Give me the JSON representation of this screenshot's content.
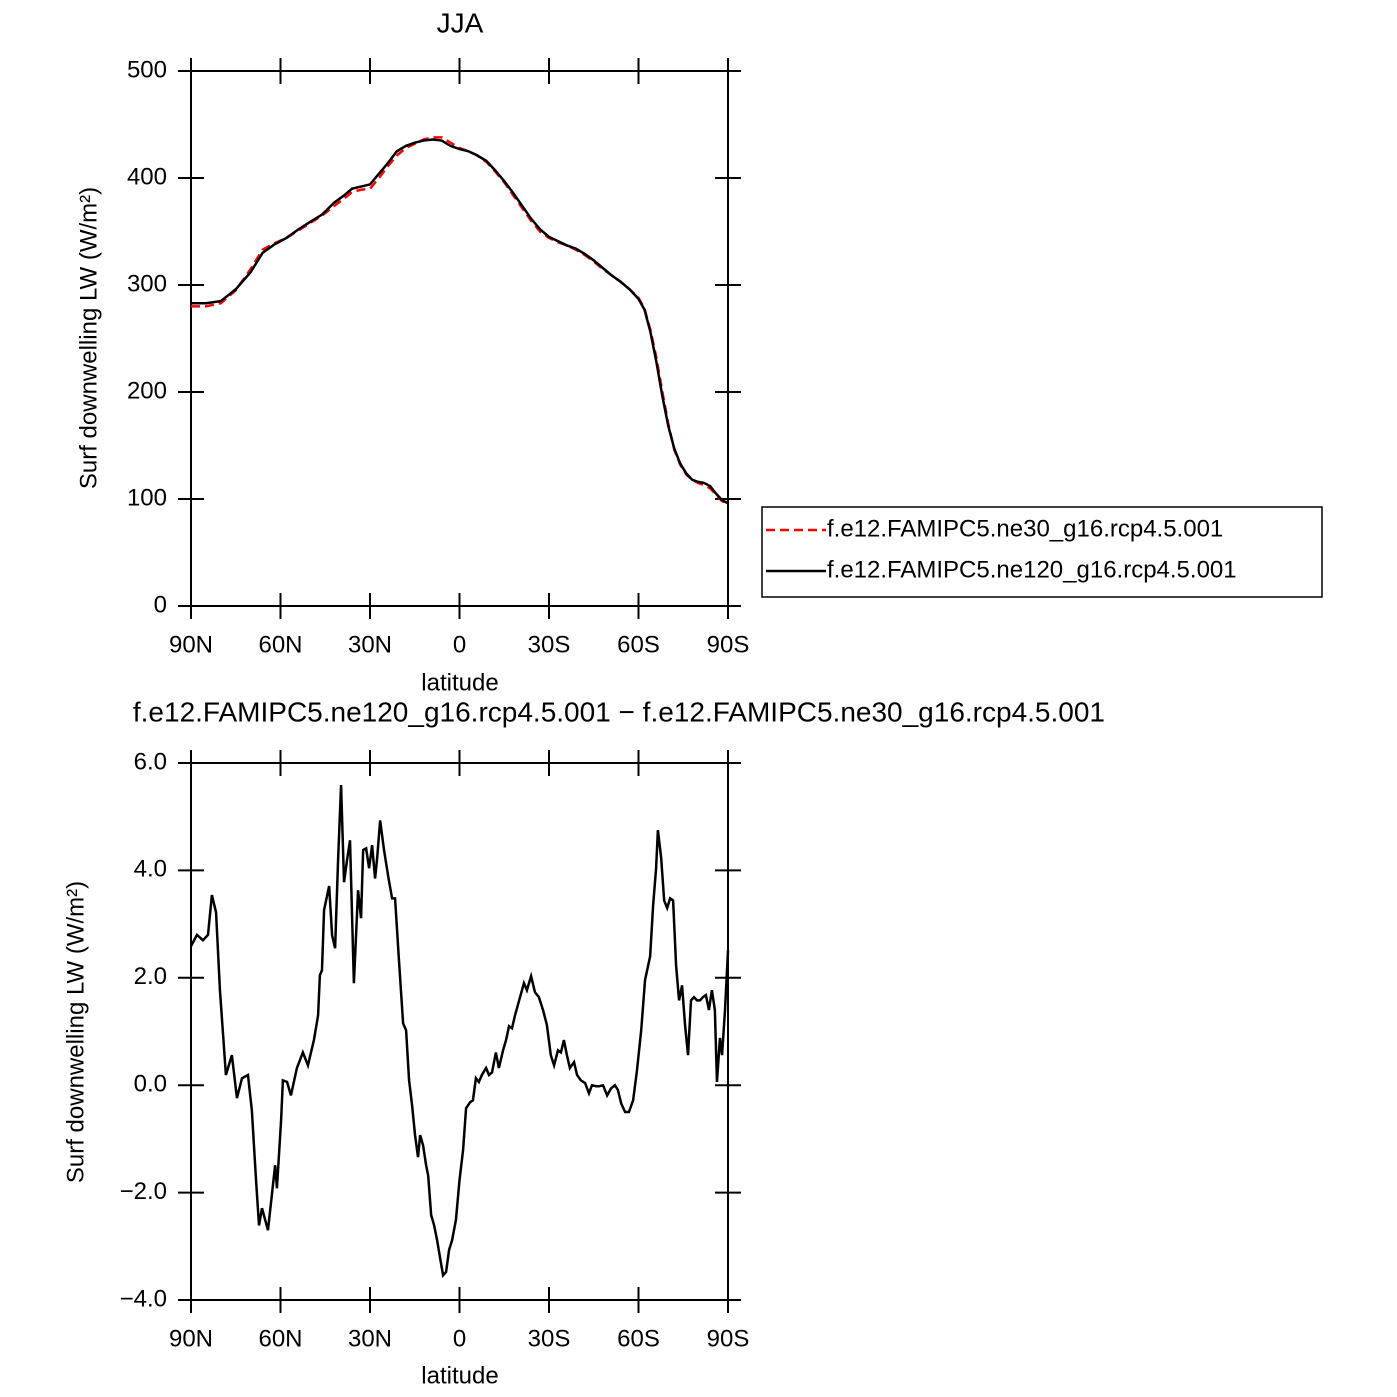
{
  "chart_data": [
    {
      "type": "line",
      "title": "JJA",
      "xlabel": "latitude",
      "ylabel": "Surf downwelling LW (W/m²)",
      "xlim": [
        90,
        -90
      ],
      "xticks": [
        {
          "value": 90,
          "label": "90N"
        },
        {
          "value": 60,
          "label": "60N"
        },
        {
          "value": 30,
          "label": "30N"
        },
        0,
        {
          "value": -30,
          "label": "30S"
        },
        {
          "value": -60,
          "label": "60S"
        },
        {
          "value": -90,
          "label": "90S"
        }
      ],
      "ylim": [
        0,
        500
      ],
      "yticks": [
        0,
        100,
        200,
        300,
        400,
        500
      ],
      "x": [
        90,
        85,
        80,
        75,
        70,
        66,
        62,
        58,
        54,
        50,
        46,
        42,
        39,
        36,
        33,
        30,
        27,
        24,
        21,
        18,
        15,
        12,
        9,
        6,
        3,
        0,
        -3,
        -6,
        -9,
        -12,
        -15,
        -18,
        -21,
        -24,
        -27,
        -30,
        -33,
        -36,
        -39,
        -42,
        -45,
        -48,
        -51,
        -54,
        -57,
        -60,
        -62,
        -64,
        -66,
        -68,
        -70,
        -72,
        -74,
        -76,
        -78,
        -80,
        -82,
        -84,
        -86,
        -88,
        -90
      ],
      "series": [
        {
          "name": "f.e12.FAMIPC5.ne30_g16.rcp4.5.001",
          "color": "#ff0000",
          "dashed": true,
          "values": [
            280,
            280,
            283,
            295,
            315,
            333,
            339,
            344,
            351,
            358,
            365,
            374,
            380,
            387,
            389,
            390,
            400,
            411,
            421,
            428,
            432,
            436,
            438,
            438,
            433,
            428,
            425,
            421,
            415,
            406,
            396,
            384,
            372,
            360,
            350,
            344,
            340,
            337,
            333,
            328,
            322,
            315,
            309,
            303,
            296,
            288,
            278,
            258,
            232,
            200,
            170,
            146,
            132,
            123,
            118,
            115,
            113,
            110,
            104,
            98,
            96
          ]
        },
        {
          "name": "f.e12.FAMIPC5.ne120_g16.rcp4.5.001",
          "color": "#000000",
          "dashed": false,
          "values": [
            283,
            283,
            285,
            296,
            312,
            330,
            338,
            344,
            352,
            359,
            366,
            377,
            383,
            390,
            392,
            394,
            404,
            414,
            425,
            430,
            433,
            435,
            436,
            435,
            430,
            427,
            425,
            421,
            416,
            407,
            397,
            386,
            374,
            362,
            352,
            345,
            341,
            337,
            334,
            329,
            323,
            316,
            309,
            303,
            296,
            287,
            277,
            256,
            228,
            196,
            168,
            147,
            133,
            124,
            118,
            116,
            115,
            112,
            105,
            99,
            96
          ]
        }
      ]
    },
    {
      "type": "line",
      "title": "f.e12.FAMIPC5.ne120_g16.rcp4.5.001 − f.e12.FAMIPC5.ne30_g16.rcp4.5.001",
      "xlabel": "latitude",
      "ylabel": "Surf downwelling LW (W/m²)",
      "xlim": [
        90,
        -90
      ],
      "xticks": [
        {
          "value": 90,
          "label": "90N"
        },
        {
          "value": 60,
          "label": "60N"
        },
        {
          "value": 30,
          "label": "30N"
        },
        0,
        {
          "value": -30,
          "label": "30S"
        },
        {
          "value": -60,
          "label": "60S"
        },
        {
          "value": -90,
          "label": "90S"
        }
      ],
      "ylim": [
        -4,
        6
      ],
      "yticks": [
        {
          "value": -4,
          "label": "−4.0"
        },
        {
          "value": -2,
          "label": "−2.0"
        },
        {
          "value": 0,
          "label": "0.0"
        },
        {
          "value": 2,
          "label": "2.0"
        },
        {
          "value": 4,
          "label": "4.0"
        },
        {
          "value": 6,
          "label": "6.0"
        }
      ],
      "color": "#000000",
      "x": [
        90,
        88,
        86,
        84.3,
        83,
        81.6,
        80.3,
        78.3,
        76.3,
        74.6,
        72.9,
        70.9,
        69.6,
        68.2,
        67.2,
        66.2,
        64.2,
        61.8,
        61.2,
        59.8,
        59.2,
        57.8,
        56.5,
        54.5,
        52.5,
        50.8,
        48.8,
        47.4,
        46.8,
        46.1,
        45.4,
        43.7,
        42.7,
        41.7,
        40.7,
        39.7,
        38.7,
        37.7,
        36.7,
        35.4,
        34,
        33,
        32.3,
        31.3,
        30.3,
        29.3,
        28.3,
        27.6,
        26.6,
        25.3,
        23.9,
        22.6,
        21.6,
        20.3,
        18.9,
        17.9,
        16.9,
        15.9,
        14.9,
        13.9,
        13.2,
        12.2,
        11.2,
        10.5,
        9.5,
        8.5,
        7.5,
        6.5,
        5.5,
        4.5,
        3.5,
        2.5,
        1.2,
        0,
        -1.2,
        -2.2,
        -3.5,
        -4.5,
        -5.5,
        -6.5,
        -7.5,
        -8.9,
        -9.9,
        -10.9,
        -12.2,
        -13.2,
        -14.6,
        -15.6,
        -16.6,
        -17.6,
        -18.6,
        -20,
        -21.6,
        -22.6,
        -24,
        -25.3,
        -26.6,
        -28,
        -29.3,
        -30.6,
        -31.7,
        -33,
        -34,
        -35,
        -36,
        -37,
        -38.4,
        -39.4,
        -40.7,
        -42.1,
        -43.4,
        -44.4,
        -45.8,
        -46.8,
        -48.1,
        -49.5,
        -50.8,
        -52.1,
        -53.1,
        -54.2,
        -55.5,
        -56.8,
        -58.2,
        -59.5,
        -60.9,
        -62.2,
        -63.9,
        -64.9,
        -65.9,
        -66.5,
        -67.6,
        -68.6,
        -69.6,
        -70.6,
        -71.6,
        -72.6,
        -73.6,
        -74.6,
        -75.6,
        -76.6,
        -77.6,
        -78.6,
        -79.6,
        -80.6,
        -81.6,
        -82.6,
        -83.6,
        -84.6,
        -85.6,
        -86.3,
        -87.3,
        -88,
        -89,
        -90
      ],
      "values": [
        2.59,
        2.8,
        2.7,
        2.8,
        3.54,
        3.22,
        1.77,
        0.19,
        0.56,
        -0.24,
        0.13,
        0.19,
        -0.47,
        -1.77,
        -2.61,
        -2.29,
        -2.7,
        -1.49,
        -1.92,
        -0.65,
        0.09,
        0.06,
        -0.19,
        0.32,
        0.61,
        0.37,
        0.84,
        1.3,
        2.05,
        2.14,
        3.26,
        3.71,
        2.79,
        2.55,
        4.19,
        5.59,
        3.78,
        4.19,
        4.56,
        1.9,
        3.63,
        3.11,
        4.38,
        4.41,
        4.04,
        4.47,
        3.85,
        4.23,
        4.93,
        4.38,
        3.89,
        3.48,
        3.48,
        2.33,
        1.15,
        1.02,
        0.09,
        -0.37,
        -0.93,
        -1.34,
        -0.93,
        -1.12,
        -1.49,
        -1.68,
        -2.42,
        -2.61,
        -2.89,
        -3.22,
        -3.54,
        -3.48,
        -3.07,
        -2.89,
        -2.51,
        -1.77,
        -1.21,
        -0.43,
        -0.32,
        -0.28,
        0.13,
        0.06,
        0.19,
        0.32,
        0.19,
        0.24,
        0.61,
        0.32,
        0.65,
        0.84,
        1.1,
        1.06,
        1.3,
        1.58,
        1.9,
        1.77,
        2.03,
        1.73,
        1.64,
        1.4,
        1.12,
        0.56,
        0.37,
        0.65,
        0.61,
        0.84,
        0.56,
        0.32,
        0.43,
        0.19,
        0.09,
        0.04,
        -0.15,
        0,
        -0.02,
        -0.02,
        0,
        -0.19,
        -0.06,
        0,
        -0.09,
        -0.34,
        -0.5,
        -0.5,
        -0.28,
        0.28,
        1.02,
        1.96,
        2.4,
        3.35,
        4.04,
        4.75,
        4.23,
        3.44,
        3.3,
        3.48,
        3.44,
        2.23,
        1.58,
        1.86,
        1.12,
        0.56,
        1.58,
        1.64,
        1.58,
        1.58,
        1.64,
        1.68,
        1.4,
        1.77,
        1.4,
        0.06,
        0.88,
        0.56,
        1.4,
        2.51
      ]
    }
  ]
}
